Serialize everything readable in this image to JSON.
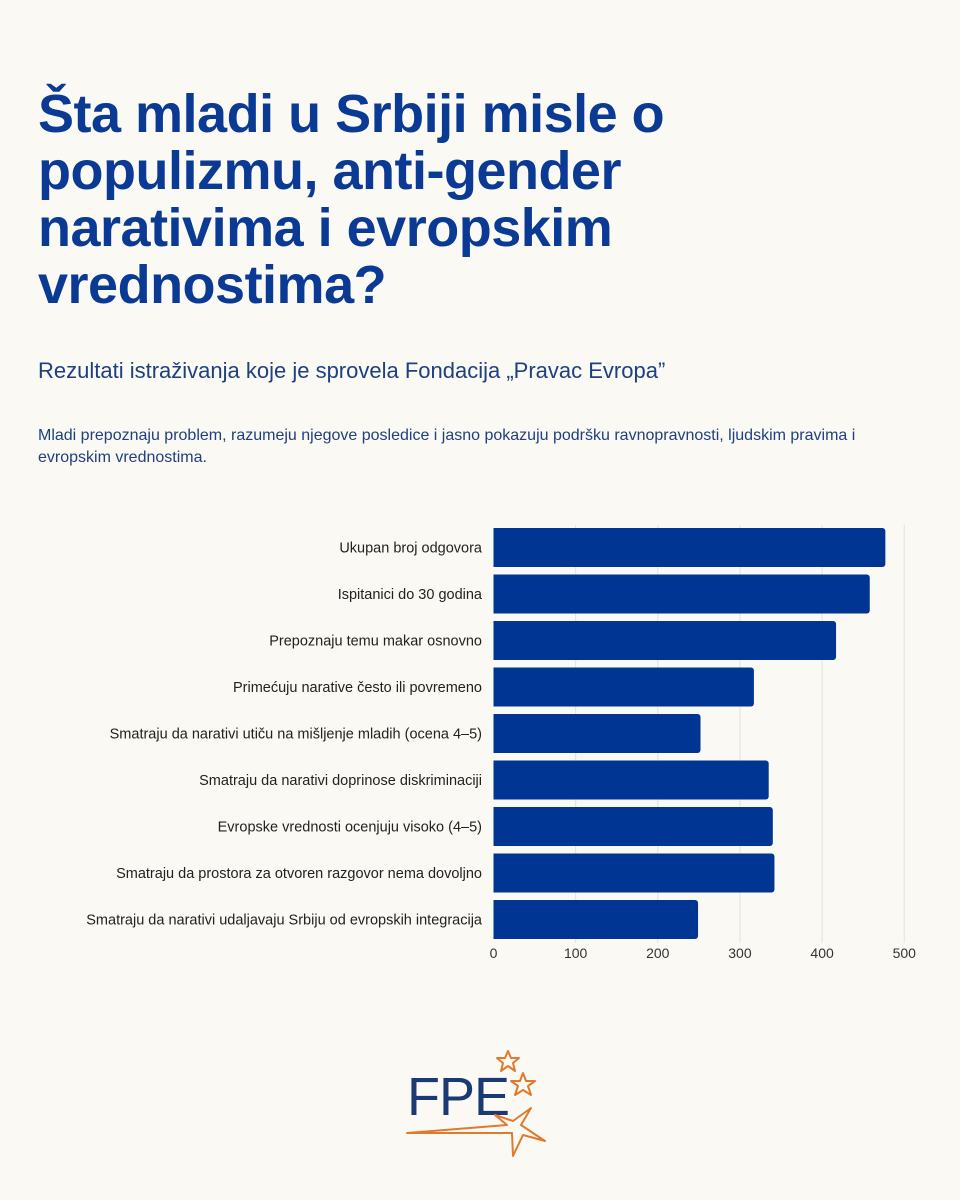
{
  "header": {
    "title": "Šta mladi u Srbiji misle o populizmu, anti-gender narativima i evropskim vrednostima?",
    "subtitle": "Rezultati istraživanja koje je sprovela Fondacija „Pravac Evropa”",
    "description": "Mladi prepoznaju problem, razumeju njegove posledice i jasno pokazuju podršku ravnopravnosti, ljudskim pravima i evropskim vrednostima."
  },
  "colors": {
    "background": "#faf9f4",
    "title": "#0a3a94",
    "bar": "#003594",
    "grid": "#e4e2dc",
    "label": "#222222",
    "logo_text": "#1b3a73",
    "logo_star": "#e07b2e"
  },
  "chart_data": {
    "type": "bar",
    "orientation": "horizontal",
    "title": "",
    "xlabel": "",
    "ylabel": "",
    "categories": [
      "Ukupan broj odgovora",
      "Ispitanici do 30 godina",
      "Prepoznaju temu makar osnovno",
      "Primećuju narative često ili povremeno",
      "Smatraju da narativi utiču na mišljenje mladih (ocena 4–5)",
      "Smatraju da narativi doprinose diskriminaciji",
      "Evropske vrednosti ocenjuju visoko (4–5)",
      "Smatraju da prostora za otvoren razgovor nema dovoljno",
      "Smatraju da narativi udaljavaju Srbiju od evropskih integracija"
    ],
    "values": [
      477,
      458,
      417,
      317,
      252,
      335,
      340,
      342,
      249
    ],
    "xlim": [
      0,
      500
    ],
    "xticks": [
      0,
      100,
      200,
      300,
      400,
      500
    ],
    "xtick_labels": [
      "0",
      "100",
      "200",
      "300",
      "400",
      "500"
    ],
    "grid": "vertical",
    "legend": "none"
  },
  "logo": {
    "text": "FPE",
    "icon": "shooting-stars-icon"
  }
}
